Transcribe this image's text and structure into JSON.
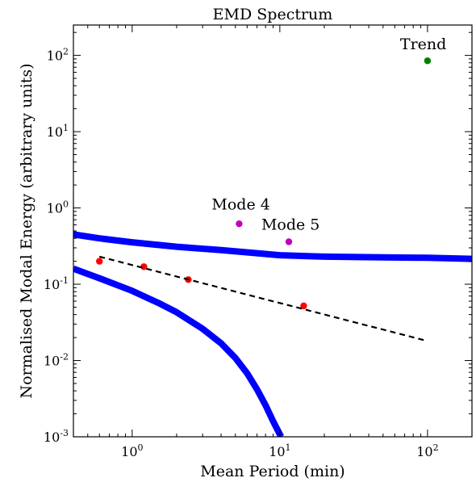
{
  "chart_data": {
    "type": "scatter",
    "title": "EMD Spectrum",
    "xlabel": "Mean Period (min)",
    "ylabel": "Normalised Modal Energy (arbitrary units)",
    "x_scale": "log",
    "y_scale": "log",
    "xlim": [
      0.4,
      200
    ],
    "ylim": [
      0.001,
      250
    ],
    "grid": false,
    "x_ticks": [
      {
        "value": 1,
        "base": "10",
        "exp": "0"
      },
      {
        "value": 10,
        "base": "10",
        "exp": "1"
      },
      {
        "value": 100,
        "base": "10",
        "exp": "2"
      }
    ],
    "y_ticks": [
      {
        "value": 0.001,
        "base": "10",
        "exp": "-3"
      },
      {
        "value": 0.01,
        "base": "10",
        "exp": "-2"
      },
      {
        "value": 0.1,
        "base": "10",
        "exp": "-1"
      },
      {
        "value": 1,
        "base": "10",
        "exp": "0"
      },
      {
        "value": 10,
        "base": "10",
        "exp": "1"
      },
      {
        "value": 100,
        "base": "10",
        "exp": "2"
      }
    ],
    "series": [
      {
        "kind": "points",
        "color": "#ff0000",
        "x": [
          0.6,
          1.2,
          2.4,
          14.5
        ],
        "y": [
          0.2,
          0.17,
          0.115,
          0.052
        ]
      },
      {
        "kind": "points",
        "color": "#bf00bf",
        "x": [
          5.3,
          11.5
        ],
        "y": [
          0.62,
          0.36
        ]
      },
      {
        "kind": "points",
        "color": "#007f00",
        "x": [
          100
        ],
        "y": [
          85
        ]
      },
      {
        "kind": "dashed-line",
        "color": "#000000",
        "x": [
          0.6,
          100
        ],
        "y": [
          0.23,
          0.018
        ]
      },
      {
        "kind": "curve",
        "color": "#0000ff",
        "x": [
          0.4,
          0.6,
          1,
          2,
          4,
          7,
          10,
          20,
          50,
          100,
          200
        ],
        "y": [
          0.45,
          0.4,
          0.355,
          0.31,
          0.28,
          0.255,
          0.24,
          0.23,
          0.225,
          0.222,
          0.215
        ]
      },
      {
        "kind": "curve",
        "color": "#0000ff",
        "x": [
          0.4,
          0.6,
          1,
          1.5,
          2,
          3,
          4,
          5,
          6,
          7,
          8,
          9,
          10.2
        ],
        "y": [
          0.16,
          0.12,
          0.082,
          0.057,
          0.043,
          0.026,
          0.0168,
          0.0108,
          0.0068,
          0.0042,
          0.0026,
          0.0016,
          0.001
        ]
      }
    ],
    "annotations": [
      {
        "text": "Trend",
        "x": 100,
        "y": 120
      },
      {
        "text": "Mode 4",
        "x": 5.3,
        "y": 0.95
      },
      {
        "text": "Mode 5",
        "x": 11.5,
        "y": 0.52
      }
    ]
  }
}
